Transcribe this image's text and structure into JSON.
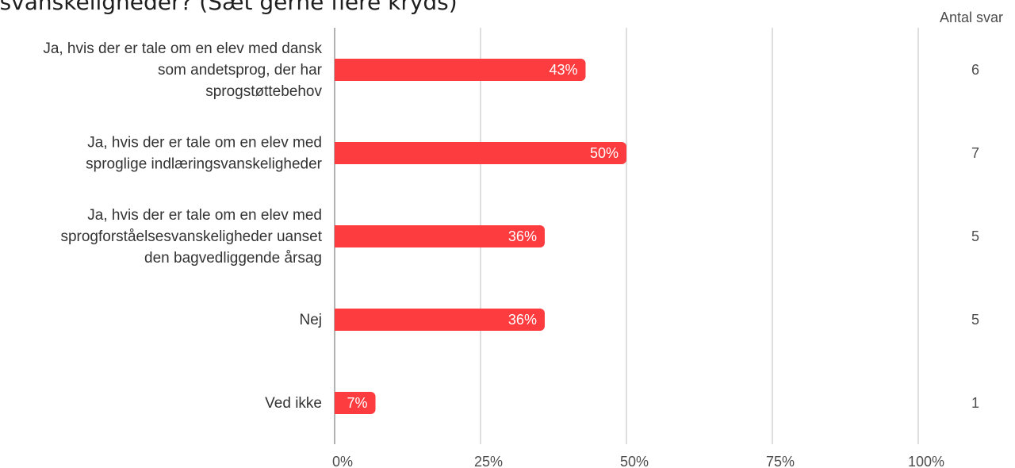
{
  "title": "lsesvanskeligheder? (Sæt gerne flere kryds)",
  "chart_data": {
    "type": "bar",
    "orientation": "horizontal",
    "categories": [
      [
        "Ja, hvis der er tale om en elev med dansk",
        "som andetsprog, der har",
        "sprogstøttebehov"
      ],
      [
        "Ja, hvis der er tale om en elev med",
        "sproglige indlæringsvanskeligheder"
      ],
      [
        "Ja, hvis der er tale om en elev med",
        "sprogforståelsesvanskeligheder uanset",
        "den bagvedliggende årsag"
      ],
      [
        "Nej"
      ],
      [
        "Ved ikke"
      ]
    ],
    "values": [
      43,
      50,
      36,
      36,
      7
    ],
    "value_labels": [
      "43%",
      "50%",
      "36%",
      "36%",
      "7%"
    ],
    "counts": [
      6,
      7,
      5,
      5,
      1
    ],
    "count_header": "Antal svar",
    "xlim": [
      0,
      100
    ],
    "xticks": [
      0,
      25,
      50,
      75,
      100
    ],
    "xtick_labels": [
      "0%",
      "25%",
      "50%",
      "75%",
      "100%"
    ],
    "grid": true,
    "bar_color": "#fc3c3f",
    "grid_color": "#bdbdbd",
    "axis_color": "#9e9e9e"
  }
}
